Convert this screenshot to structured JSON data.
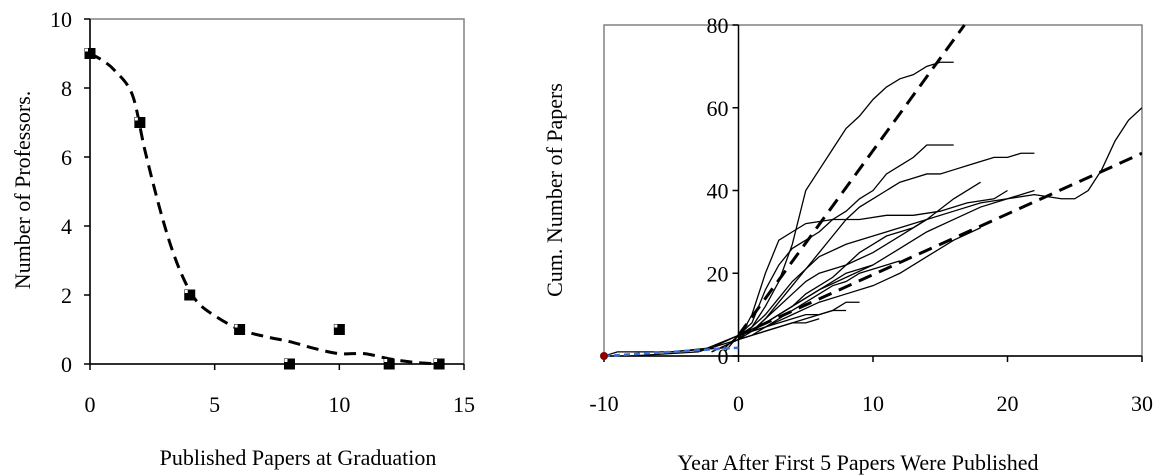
{
  "chart_data": [
    {
      "type": "scatter",
      "xlabel": "Published Papers at Graduation",
      "ylabel": "Number of Professors.",
      "xlim": [
        0,
        15
      ],
      "ylim": [
        0,
        10
      ],
      "xticks": [
        "0",
        "5",
        "10",
        "15"
      ],
      "yticks": [
        "0",
        "2",
        "4",
        "6",
        "8",
        "10"
      ],
      "grid": false,
      "points": [
        {
          "x": 0,
          "y": 9
        },
        {
          "x": 2,
          "y": 7
        },
        {
          "x": 4,
          "y": 2
        },
        {
          "x": 6,
          "y": 1
        },
        {
          "x": 8,
          "y": 0
        },
        {
          "x": 10,
          "y": 1
        },
        {
          "x": 12,
          "y": 0
        },
        {
          "x": 14,
          "y": 0
        }
      ],
      "fit_curve": [
        {
          "x": 0,
          "y": 9.0
        },
        {
          "x": 0.5,
          "y": 8.8
        },
        {
          "x": 1.0,
          "y": 8.5
        },
        {
          "x": 1.7,
          "y": 7.8
        },
        {
          "x": 2.2,
          "y": 6.2
        },
        {
          "x": 2.8,
          "y": 4.5
        },
        {
          "x": 3.3,
          "y": 3.3
        },
        {
          "x": 3.8,
          "y": 2.4
        },
        {
          "x": 4.3,
          "y": 1.8
        },
        {
          "x": 5.0,
          "y": 1.4
        },
        {
          "x": 6.0,
          "y": 1.0
        },
        {
          "x": 7.0,
          "y": 0.8
        },
        {
          "x": 8.0,
          "y": 0.65
        },
        {
          "x": 9.0,
          "y": 0.45
        },
        {
          "x": 10.0,
          "y": 0.3
        },
        {
          "x": 11.0,
          "y": 0.3
        },
        {
          "x": 12.0,
          "y": 0.15
        },
        {
          "x": 13.0,
          "y": 0.05
        },
        {
          "x": 14.0,
          "y": 0.0
        }
      ]
    },
    {
      "type": "line",
      "xlabel": "Year After First 5 Papers Were Published",
      "ylabel": "Cum. Number of Papers",
      "xlim": [
        -10,
        30
      ],
      "ylim": [
        0,
        80
      ],
      "xticks": [
        "-10",
        "0",
        "10",
        "20",
        "30"
      ],
      "yticks": [
        "0",
        "20",
        "40",
        "60",
        "80"
      ],
      "grid": false,
      "series": [
        {
          "points": [
            [
              -10,
              0
            ],
            [
              -9,
              1
            ],
            [
              -5,
              1
            ],
            [
              -2,
              2
            ],
            [
              0,
              5
            ],
            [
              1,
              7
            ],
            [
              2,
              12
            ],
            [
              3,
              18
            ],
            [
              4,
              27
            ],
            [
              5,
              40
            ],
            [
              6,
              45
            ],
            [
              7,
              50
            ],
            [
              8,
              55
            ],
            [
              9,
              58
            ],
            [
              10,
              62
            ],
            [
              11,
              65
            ],
            [
              12,
              67
            ],
            [
              13,
              68
            ],
            [
              14,
              70
            ],
            [
              15,
              71
            ],
            [
              16,
              71
            ]
          ]
        },
        {
          "points": [
            [
              -5,
              1
            ],
            [
              -1,
              2
            ],
            [
              0,
              5
            ],
            [
              1,
              8
            ],
            [
              2,
              16
            ],
            [
              3,
              22
            ],
            [
              4,
              26
            ],
            [
              5,
              28
            ],
            [
              6,
              30
            ],
            [
              7,
              33
            ],
            [
              8,
              35
            ],
            [
              9,
              38
            ],
            [
              10,
              40
            ],
            [
              11,
              44
            ],
            [
              12,
              46
            ],
            [
              13,
              48
            ],
            [
              14,
              51
            ],
            [
              16,
              51
            ]
          ]
        },
        {
          "points": [
            [
              -8,
              0
            ],
            [
              -3,
              1
            ],
            [
              0,
              4
            ],
            [
              1,
              10
            ],
            [
              2,
              20
            ],
            [
              3,
              28
            ],
            [
              4,
              30
            ],
            [
              5,
              32
            ],
            [
              7,
              33
            ],
            [
              9,
              33
            ],
            [
              11,
              34
            ],
            [
              13,
              34
            ],
            [
              15,
              35
            ],
            [
              17,
              37
            ],
            [
              19,
              38
            ],
            [
              20,
              40
            ]
          ]
        },
        {
          "points": [
            [
              -2,
              1
            ],
            [
              0,
              4
            ],
            [
              1,
              6
            ],
            [
              2,
              9
            ],
            [
              3,
              13
            ],
            [
              4,
              17
            ],
            [
              5,
              21
            ],
            [
              6,
              25
            ],
            [
              7,
              29
            ],
            [
              8,
              33
            ],
            [
              9,
              36
            ],
            [
              10,
              38
            ],
            [
              11,
              40
            ],
            [
              12,
              42
            ],
            [
              13,
              43
            ],
            [
              14,
              44
            ],
            [
              15,
              44
            ],
            [
              16,
              45
            ],
            [
              17,
              46
            ],
            [
              18,
              47
            ],
            [
              19,
              48
            ],
            [
              20,
              48
            ],
            [
              21,
              49
            ],
            [
              22,
              49
            ]
          ]
        },
        {
          "points": [
            [
              -3,
              1
            ],
            [
              0,
              5
            ],
            [
              2,
              8
            ],
            [
              4,
              12
            ],
            [
              5,
              14
            ],
            [
              6,
              16
            ],
            [
              8,
              19
            ],
            [
              10,
              22
            ],
            [
              12,
              26
            ],
            [
              14,
              30
            ],
            [
              16,
              33
            ],
            [
              18,
              36
            ],
            [
              20,
              38
            ],
            [
              22,
              40
            ]
          ]
        },
        {
          "points": [
            [
              -2,
              1
            ],
            [
              0,
              4
            ],
            [
              1,
              7
            ],
            [
              2,
              10
            ],
            [
              3,
              14
            ],
            [
              4,
              18
            ],
            [
              5,
              21
            ],
            [
              6,
              24
            ],
            [
              8,
              27
            ],
            [
              10,
              29
            ],
            [
              12,
              31
            ],
            [
              14,
              33
            ],
            [
              16,
              35
            ],
            [
              18,
              37
            ],
            [
              20,
              38
            ],
            [
              22,
              39
            ],
            [
              24,
              38
            ],
            [
              25,
              38
            ],
            [
              26,
              40
            ],
            [
              27,
              45
            ],
            [
              28,
              52
            ],
            [
              29,
              57
            ],
            [
              30,
              60
            ]
          ]
        },
        {
          "points": [
            [
              -1,
              1
            ],
            [
              0,
              5
            ],
            [
              1,
              6
            ],
            [
              2,
              9
            ],
            [
              3,
              12
            ],
            [
              4,
              15
            ],
            [
              5,
              18
            ],
            [
              6,
              20
            ],
            [
              8,
              22
            ],
            [
              10,
              25
            ],
            [
              12,
              29
            ],
            [
              14,
              33
            ],
            [
              16,
              38
            ],
            [
              18,
              42
            ]
          ]
        },
        {
          "points": [
            [
              0,
              5
            ],
            [
              1,
              6
            ],
            [
              2,
              8
            ],
            [
              3,
              10
            ],
            [
              4,
              12
            ],
            [
              5,
              15
            ],
            [
              6,
              17
            ],
            [
              7,
              19
            ],
            [
              8,
              22
            ],
            [
              9,
              25
            ],
            [
              10,
              27
            ],
            [
              11,
              29
            ],
            [
              12,
              30
            ],
            [
              13,
              31
            ],
            [
              14,
              33
            ]
          ]
        },
        {
          "points": [
            [
              0,
              4
            ],
            [
              1,
              5
            ],
            [
              2,
              7
            ],
            [
              3,
              9
            ],
            [
              4,
              11
            ],
            [
              5,
              13
            ],
            [
              6,
              15
            ],
            [
              7,
              17
            ],
            [
              8,
              18
            ],
            [
              9,
              20
            ],
            [
              10,
              21
            ],
            [
              11,
              22
            ],
            [
              12,
              23
            ]
          ]
        },
        {
          "points": [
            [
              0,
              5
            ],
            [
              1,
              6
            ],
            [
              2,
              8
            ],
            [
              3,
              10
            ],
            [
              4,
              12
            ],
            [
              5,
              14
            ],
            [
              6,
              16
            ],
            [
              7,
              18
            ],
            [
              8,
              20
            ],
            [
              9,
              21
            ],
            [
              10,
              22
            ]
          ]
        },
        {
          "points": [
            [
              0,
              4
            ],
            [
              1,
              5
            ],
            [
              2,
              6
            ],
            [
              3,
              7
            ],
            [
              4,
              8
            ],
            [
              5,
              9
            ],
            [
              6,
              10
            ],
            [
              7,
              11
            ],
            [
              8,
              13
            ],
            [
              9,
              13
            ]
          ]
        },
        {
          "points": [
            [
              0,
              5
            ],
            [
              1,
              6
            ],
            [
              2,
              7
            ],
            [
              3,
              8
            ],
            [
              4,
              9
            ],
            [
              5,
              10
            ],
            [
              6,
              10
            ],
            [
              7,
              11
            ],
            [
              8,
              11
            ]
          ]
        },
        {
          "points": [
            [
              0,
              4
            ],
            [
              1,
              5
            ],
            [
              2,
              6
            ],
            [
              3,
              7
            ],
            [
              4,
              8
            ],
            [
              5,
              8
            ],
            [
              6,
              9
            ]
          ]
        },
        {
          "points": [
            [
              0,
              5
            ],
            [
              2,
              7
            ],
            [
              4,
              10
            ],
            [
              6,
              13
            ],
            [
              8,
              15
            ],
            [
              10,
              17
            ],
            [
              12,
              20
            ],
            [
              14,
              24
            ],
            [
              16,
              28
            ],
            [
              18,
              31
            ]
          ]
        }
      ],
      "fit_lines": [
        {
          "points": [
            [
              0,
              5
            ],
            [
              16.8,
              80
            ]
          ]
        },
        {
          "points": [
            [
              0,
              5
            ],
            [
              30,
              49
            ]
          ]
        }
      ],
      "pre_segment": {
        "points": [
          [
            -10,
            0
          ],
          [
            0,
            2
          ]
        ]
      }
    }
  ]
}
